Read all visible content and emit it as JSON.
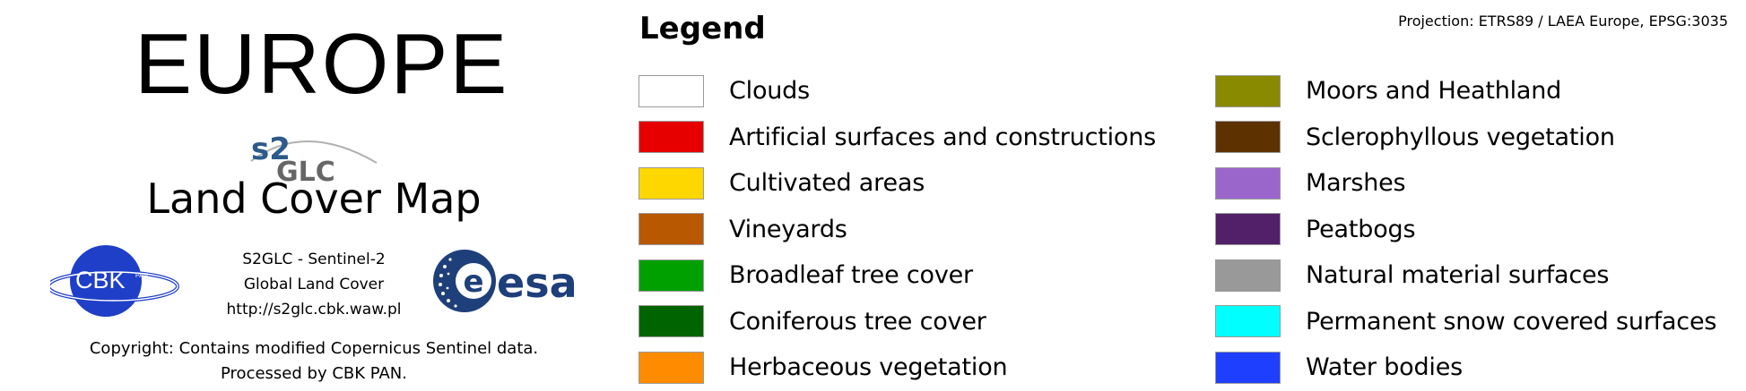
{
  "header": {
    "title": "EUROPE",
    "logo_text_s2": "s2",
    "logo_text_glc": "GLC",
    "subtitle": "Land Cover Map"
  },
  "logos": {
    "cbk_text": "CBK",
    "cbk_small": "PAN",
    "esa_text": "esa"
  },
  "project_info": {
    "line1": "S2GLC - Sentinel-2",
    "line2": "Global Land Cover",
    "line3": "http://s2glc.cbk.waw.pl"
  },
  "copyright": {
    "line1": "Copyright: Contains modified Copernicus Sentinel data.",
    "line2": "Processed by CBK PAN."
  },
  "legend": {
    "title": "Legend",
    "projection": "Projection: ETRS89 / LAEA Europe, EPSG:3035",
    "left": [
      {
        "label": "Clouds",
        "color": "#ffffff"
      },
      {
        "label": "Artificial surfaces and constructions",
        "color": "#e60000"
      },
      {
        "label": "Cultivated areas",
        "color": "#ffd700"
      },
      {
        "label": "Vineyards",
        "color": "#b85800"
      },
      {
        "label": "Broadleaf tree cover",
        "color": "#00a000"
      },
      {
        "label": "Coniferous tree cover",
        "color": "#006400"
      },
      {
        "label": "Herbaceous vegetation",
        "color": "#ff8c00"
      }
    ],
    "right": [
      {
        "label": "Moors and Heathland",
        "color": "#8a8a00"
      },
      {
        "label": "Sclerophyllous vegetation",
        "color": "#5e3200"
      },
      {
        "label": "Marshes",
        "color": "#9b66cc"
      },
      {
        "label": "Peatbogs",
        "color": "#512068"
      },
      {
        "label": "Natural material surfaces",
        "color": "#999999"
      },
      {
        "label": "Permanent snow covered surfaces",
        "color": "#00ffff"
      },
      {
        "label": "Water bodies",
        "color": "#1f3fff"
      }
    ]
  }
}
